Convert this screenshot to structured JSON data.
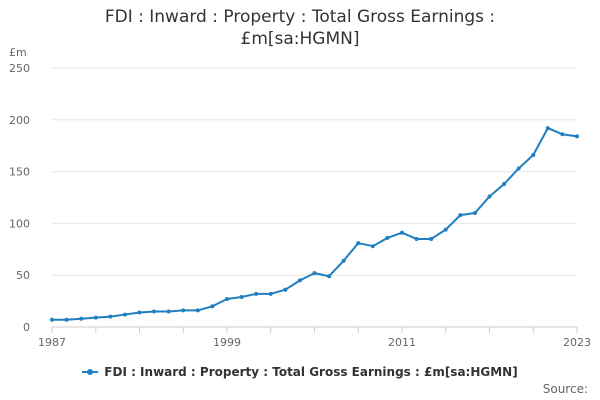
{
  "title_line1": "FDI : Inward : Property : Total Gross Earnings :",
  "title_line2": "£m[sa:HGMN]",
  "source_label": "Source:",
  "colors": {
    "series": "#1f7fbf",
    "grid": "#e6e6e6",
    "axis": "#cccccc"
  },
  "chart_data": {
    "type": "line",
    "title": "FDI : Inward : Property : Total Gross Earnings : £m[sa:HGMN]",
    "ylabel": "£m",
    "ylim": [
      0,
      250
    ],
    "yticks": [
      0,
      50,
      100,
      150,
      200,
      250
    ],
    "xlim": [
      1987,
      2023
    ],
    "xticks": [
      1987,
      1999,
      2011,
      2023
    ],
    "grid": "horizontal",
    "legend_position": "bottom",
    "series": [
      {
        "name": "FDI : Inward : Property : Total Gross Earnings : £m[sa:HGMN]",
        "x": [
          1987,
          1988,
          1989,
          1990,
          1991,
          1992,
          1993,
          1994,
          1995,
          1996,
          1997,
          1998,
          1999,
          2000,
          2001,
          2002,
          2003,
          2004,
          2005,
          2006,
          2007,
          2008,
          2009,
          2010,
          2011,
          2012,
          2013,
          2014,
          2015,
          2016,
          2017,
          2018,
          2019,
          2020,
          2021,
          2022,
          2023
        ],
        "values": [
          7,
          7,
          8,
          9,
          10,
          12,
          14,
          15,
          15,
          16,
          16,
          20,
          27,
          29,
          32,
          32,
          36,
          45,
          52,
          49,
          64,
          81,
          78,
          86,
          91,
          85,
          85,
          94,
          108,
          110,
          126,
          138,
          153,
          166,
          192,
          186,
          184
        ]
      }
    ]
  }
}
